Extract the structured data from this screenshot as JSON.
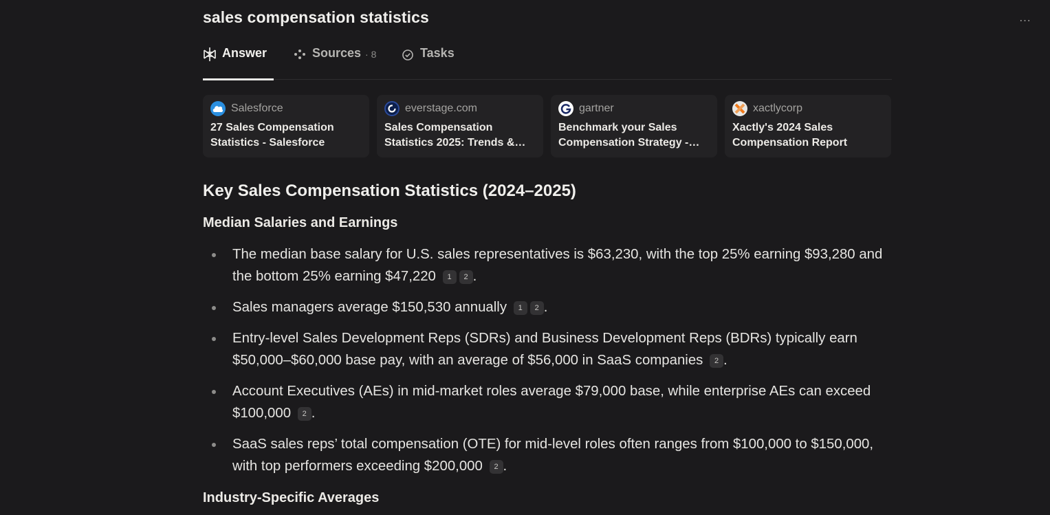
{
  "query": "sales compensation statistics",
  "tabs": {
    "answer": "Answer",
    "sources": "Sources",
    "sources_count": "8",
    "tasks": "Tasks"
  },
  "more_icon": "…",
  "sources": [
    {
      "site": "Salesforce",
      "title": "27 Sales Compensation Statistics - Salesforce",
      "icon": "salesforce-cloud"
    },
    {
      "site": "everstage.com",
      "title": "Sales Compensation Statistics 2025: Trends &…",
      "icon": "everstage-ring"
    },
    {
      "site": "gartner",
      "title": "Benchmark your Sales Compensation Strategy -…",
      "icon": "gartner-g"
    },
    {
      "site": "xactlycorp",
      "title": "Xactly's 2024 Sales Compensation Report",
      "icon": "xactly-x"
    }
  ],
  "heading": "Key Sales Compensation Statistics (2024–2025)",
  "section1": "Median Salaries and Earnings",
  "bullets": [
    {
      "text": "The median base salary for U.S. sales representatives is $63,230, with the top 25% earning $93,280 and the bottom 25% earning $47,220",
      "cites": [
        "1",
        "2"
      ]
    },
    {
      "text": "Sales managers average $150,530 annually",
      "cites": [
        "1",
        "2"
      ]
    },
    {
      "text": "Entry-level Sales Development Reps (SDRs) and Business Development Reps (BDRs) typically earn $50,000–$60,000 base pay, with an average of $56,000 in SaaS companies",
      "cites": [
        "2"
      ]
    },
    {
      "text": "Account Executives (AEs) in mid-market roles average $79,000 base, while enterprise AEs can exceed $100,000",
      "cites": [
        "2"
      ]
    },
    {
      "text": "SaaS sales reps’ total compensation (OTE) for mid-level roles often ranges from $100,000 to $150,000, with top performers exceeding $200,000",
      "cites": [
        "2"
      ]
    }
  ],
  "period": ".",
  "section2": "Industry-Specific Averages",
  "colors": {
    "background": "#1b1a1c",
    "card": "#232224",
    "accent_text": "#f0efec"
  }
}
